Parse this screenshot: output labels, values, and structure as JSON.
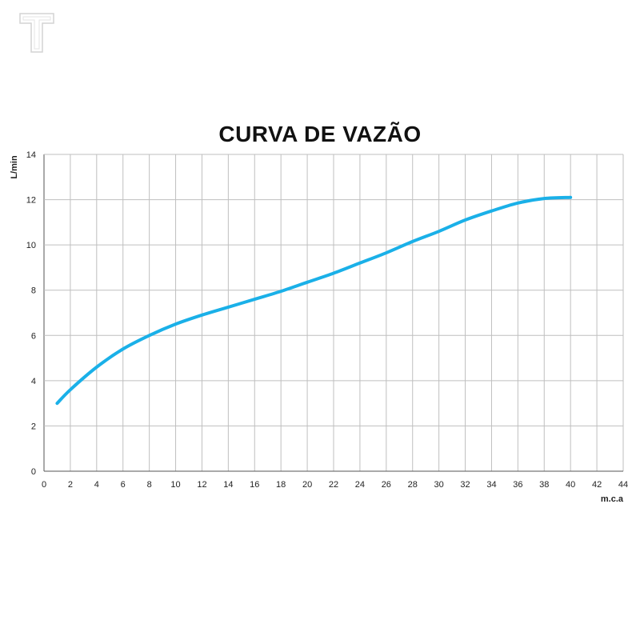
{
  "logo": {
    "text": "T"
  },
  "chart_data": {
    "type": "line",
    "title": "CURVA DE VAZÃO",
    "xlabel": "m.c.a",
    "ylabel": "L/min",
    "xlim": [
      0,
      44
    ],
    "ylim": [
      0,
      14
    ],
    "xticks": [
      0,
      2,
      4,
      6,
      8,
      10,
      12,
      14,
      16,
      18,
      20,
      22,
      24,
      26,
      28,
      30,
      32,
      34,
      36,
      38,
      40,
      42,
      44
    ],
    "yticks": [
      0,
      2,
      4,
      6,
      8,
      10,
      12,
      14
    ],
    "grid": true,
    "line_color": "#1ab0e8",
    "series": [
      {
        "x": [
          1,
          2,
          4,
          6,
          8,
          10,
          12,
          14,
          16,
          18,
          20,
          22,
          24,
          26,
          28,
          30,
          32,
          34,
          36,
          38,
          40
        ],
        "values": [
          3.0,
          3.6,
          4.6,
          5.4,
          6.0,
          6.5,
          6.9,
          7.25,
          7.6,
          7.95,
          8.35,
          8.75,
          9.2,
          9.65,
          10.15,
          10.6,
          11.1,
          11.5,
          11.85,
          12.05,
          12.1
        ]
      }
    ]
  }
}
